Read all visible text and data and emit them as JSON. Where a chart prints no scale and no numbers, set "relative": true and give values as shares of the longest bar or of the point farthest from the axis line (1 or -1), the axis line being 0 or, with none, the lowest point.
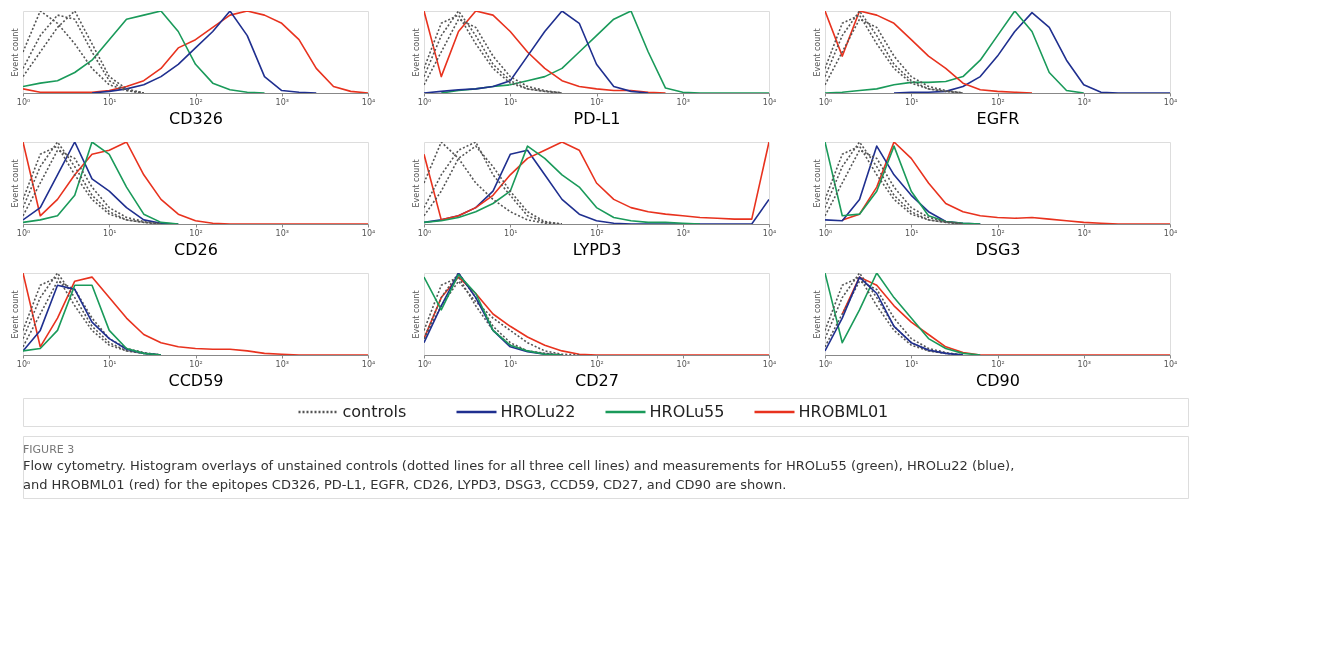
{
  "chart_data": [
    {
      "type": "line",
      "xlabel": "CD326",
      "ylabel": "Event count",
      "relative": true,
      "log": "x",
      "tick_labels": "x",
      "line_style": "solid",
      "xlim": [
        1,
        10000
      ],
      "xticks": [
        {
          "value": 1,
          "label": "10⁰"
        },
        {
          "value": 10,
          "label": "10¹"
        },
        {
          "value": 100,
          "label": "10²"
        },
        {
          "value": 1000,
          "label": "10³"
        },
        {
          "value": 10000,
          "label": "10⁴"
        }
      ],
      "x": [
        1,
        1.585,
        2.512,
        3.981,
        6.31,
        10,
        15.85,
        25.12,
        39.81,
        63.1,
        100,
        158.5,
        251.2,
        398.1,
        631,
        1000,
        1585,
        2512,
        3981,
        6310,
        10000
      ],
      "series": [
        {
          "color": "#555555",
          "line_style": "dotted",
          "values": [
            0.5,
            1,
            0.85,
            0.6,
            0.3,
            0.1,
            0.03,
            0,
            null,
            null,
            null,
            null,
            null,
            null,
            null,
            null,
            null,
            null,
            null,
            null,
            null
          ]
        },
        {
          "color": "#555555",
          "line_style": "dotted",
          "values": [
            0.3,
            0.7,
            0.95,
            0.9,
            0.5,
            0.15,
            0.03,
            0,
            null,
            null,
            null,
            null,
            null,
            null,
            null,
            null,
            null,
            null,
            null,
            null,
            null
          ]
        },
        {
          "color": "#555555",
          "line_style": "dotted",
          "values": [
            0.2,
            0.5,
            0.8,
            1,
            0.6,
            0.2,
            0.05,
            0,
            null,
            null,
            null,
            null,
            null,
            null,
            null,
            null,
            null,
            null,
            null,
            null,
            null
          ]
        },
        {
          "color": "#1f2f8f",
          "values": [
            null,
            null,
            null,
            null,
            0,
            0.02,
            0.05,
            0.1,
            0.2,
            0.35,
            0.55,
            0.75,
            1,
            0.7,
            0.2,
            0.03,
            0.01,
            0,
            null,
            null,
            null
          ]
        },
        {
          "color": "#1a9a5a",
          "values": [
            0.08,
            0.12,
            0.15,
            0.25,
            0.4,
            0.65,
            0.9,
            0.95,
            1,
            0.75,
            0.35,
            0.12,
            0.04,
            0.01,
            0,
            null,
            null,
            null,
            null,
            null,
            null
          ]
        },
        {
          "color": "#e8321e",
          "values": [
            0.05,
            0.01,
            0.01,
            0.01,
            0.01,
            0.03,
            0.08,
            0.15,
            0.3,
            0.55,
            0.65,
            0.8,
            0.95,
            1,
            0.95,
            0.85,
            0.65,
            0.3,
            0.08,
            0.02,
            0
          ]
        }
      ]
    },
    {
      "type": "line",
      "xlabel": "PD-L1",
      "ylabel": "Event count",
      "relative": true,
      "log": "x",
      "tick_labels": "x",
      "line_style": "solid",
      "xlim": [
        1,
        10000
      ],
      "xticks": [
        {
          "value": 1,
          "label": "10⁰"
        },
        {
          "value": 10,
          "label": "10¹"
        },
        {
          "value": 100,
          "label": "10²"
        },
        {
          "value": 1000,
          "label": "10³"
        },
        {
          "value": 10000,
          "label": "10⁴"
        }
      ],
      "x": [
        1,
        1.585,
        2.512,
        3.981,
        6.31,
        10,
        15.85,
        25.12,
        39.81,
        63.1,
        100,
        158.5,
        251.2,
        398.1,
        631,
        1000,
        1585,
        2512,
        3981,
        6310,
        10000
      ],
      "series": [
        {
          "color": "#555555",
          "line_style": "dotted",
          "values": [
            0.3,
            0.85,
            0.95,
            0.6,
            0.3,
            0.12,
            0.05,
            0.02,
            0,
            null,
            null,
            null,
            null,
            null,
            null,
            null,
            null,
            null,
            null,
            null,
            null
          ]
        },
        {
          "color": "#555555",
          "line_style": "dotted",
          "values": [
            0.2,
            0.7,
            1,
            0.7,
            0.35,
            0.15,
            0.05,
            0.02,
            0,
            null,
            null,
            null,
            null,
            null,
            null,
            null,
            null,
            null,
            null,
            null,
            null
          ]
        },
        {
          "color": "#555555",
          "line_style": "dotted",
          "values": [
            0.1,
            0.5,
            0.9,
            0.8,
            0.45,
            0.2,
            0.08,
            0.03,
            0,
            null,
            null,
            null,
            null,
            null,
            null,
            null,
            null,
            null,
            null,
            null,
            null
          ]
        },
        {
          "color": "#1f2f8f",
          "values": [
            0,
            0.02,
            0.04,
            0.05,
            0.08,
            0.15,
            0.45,
            0.75,
            1,
            0.85,
            0.35,
            0.08,
            0.02,
            0,
            null,
            null,
            null,
            null,
            null,
            null,
            null
          ]
        },
        {
          "color": "#1a9a5a",
          "values": [
            null,
            0,
            0.03,
            0.05,
            0.08,
            0.1,
            0.15,
            0.2,
            0.3,
            0.5,
            0.7,
            0.9,
            1,
            0.5,
            0.06,
            0.01,
            0,
            0,
            0,
            0,
            0
          ]
        },
        {
          "color": "#e8321e",
          "values": [
            1,
            0.2,
            0.75,
            1,
            0.95,
            0.75,
            0.5,
            0.3,
            0.15,
            0.08,
            0.05,
            0.03,
            0.03,
            0.01,
            0,
            null,
            null,
            null,
            null,
            null,
            null
          ]
        }
      ]
    },
    {
      "type": "line",
      "xlabel": "EGFR",
      "ylabel": "Event count",
      "relative": true,
      "log": "x",
      "tick_labels": "x",
      "line_style": "solid",
      "xlim": [
        1,
        10000
      ],
      "xticks": [
        {
          "value": 1,
          "label": "10⁰"
        },
        {
          "value": 10,
          "label": "10¹"
        },
        {
          "value": 100,
          "label": "10²"
        },
        {
          "value": 1000,
          "label": "10³"
        },
        {
          "value": 10000,
          "label": "10⁴"
        }
      ],
      "x": [
        1,
        1.585,
        2.512,
        3.981,
        6.31,
        10,
        15.85,
        25.12,
        39.81,
        63.1,
        100,
        158.5,
        251.2,
        398.1,
        631,
        1000,
        1585,
        2512,
        3981,
        6310,
        10000
      ],
      "series": [
        {
          "color": "#555555",
          "line_style": "dotted",
          "values": [
            0.3,
            0.85,
            0.95,
            0.6,
            0.3,
            0.12,
            0.05,
            0.02,
            0,
            null,
            null,
            null,
            null,
            null,
            null,
            null,
            null,
            null,
            null,
            null,
            null
          ]
        },
        {
          "color": "#555555",
          "line_style": "dotted",
          "values": [
            0.2,
            0.7,
            1,
            0.7,
            0.35,
            0.15,
            0.05,
            0.02,
            0,
            null,
            null,
            null,
            null,
            null,
            null,
            null,
            null,
            null,
            null,
            null,
            null
          ]
        },
        {
          "color": "#555555",
          "line_style": "dotted",
          "values": [
            0.1,
            0.5,
            0.9,
            0.8,
            0.45,
            0.2,
            0.08,
            0.03,
            0,
            null,
            null,
            null,
            null,
            null,
            null,
            null,
            null,
            null,
            null,
            null,
            null
          ]
        },
        {
          "color": "#1f2f8f",
          "values": [
            null,
            null,
            null,
            null,
            0,
            0.01,
            0.01,
            0.02,
            0.08,
            0.2,
            0.45,
            0.75,
            0.98,
            0.8,
            0.4,
            0.1,
            0.01,
            0,
            0,
            0,
            0
          ]
        },
        {
          "color": "#1a9a5a",
          "values": [
            0,
            0.01,
            0.03,
            0.05,
            0.1,
            0.13,
            0.13,
            0.14,
            0.2,
            0.4,
            0.7,
            1,
            0.75,
            0.25,
            0.03,
            0,
            null,
            null,
            null,
            null,
            null
          ]
        },
        {
          "color": "#e8321e",
          "values": [
            1,
            0.45,
            1,
            0.95,
            0.85,
            0.65,
            0.45,
            0.3,
            0.12,
            0.04,
            0.02,
            0.01,
            0,
            null,
            null,
            null,
            null,
            null,
            null,
            null,
            null
          ]
        }
      ]
    },
    {
      "type": "line",
      "xlabel": "CD26",
      "ylabel": "Event count",
      "relative": true,
      "log": "x",
      "tick_labels": "x",
      "line_style": "solid",
      "xlim": [
        1,
        10000
      ],
      "xticks": [
        {
          "value": 1,
          "label": "10⁰"
        },
        {
          "value": 10,
          "label": "10¹"
        },
        {
          "value": 100,
          "label": "10²"
        },
        {
          "value": 1000,
          "label": "10³"
        },
        {
          "value": 10000,
          "label": "10⁴"
        }
      ],
      "x": [
        1,
        1.585,
        2.512,
        3.981,
        6.31,
        10,
        15.85,
        25.12,
        39.81,
        63.1,
        100,
        158.5,
        251.2,
        398.1,
        631,
        1000,
        1585,
        2512,
        3981,
        6310,
        10000
      ],
      "series": [
        {
          "color": "#555555",
          "line_style": "dotted",
          "values": [
            0.3,
            0.85,
            0.95,
            0.6,
            0.3,
            0.12,
            0.05,
            0.02,
            0,
            null,
            null,
            null,
            null,
            null,
            null,
            null,
            null,
            null,
            null,
            null,
            null
          ]
        },
        {
          "color": "#555555",
          "line_style": "dotted",
          "values": [
            0.2,
            0.7,
            1,
            0.7,
            0.35,
            0.15,
            0.05,
            0.02,
            0,
            null,
            null,
            null,
            null,
            null,
            null,
            null,
            null,
            null,
            null,
            null,
            null
          ]
        },
        {
          "color": "#555555",
          "line_style": "dotted",
          "values": [
            0.1,
            0.5,
            0.9,
            0.8,
            0.45,
            0.2,
            0.08,
            0.03,
            0,
            null,
            null,
            null,
            null,
            null,
            null,
            null,
            null,
            null,
            null,
            null,
            null
          ]
        },
        {
          "color": "#1f2f8f",
          "values": [
            0.05,
            0.2,
            0.6,
            1,
            0.55,
            0.4,
            0.2,
            0.05,
            0.01,
            0,
            null,
            null,
            null,
            null,
            null,
            null,
            null,
            null,
            null,
            null,
            null
          ]
        },
        {
          "color": "#1a9a5a",
          "values": [
            0.02,
            0.05,
            0.1,
            0.35,
            1,
            0.85,
            0.45,
            0.12,
            0.02,
            0,
            null,
            null,
            null,
            null,
            null,
            null,
            null,
            null,
            null,
            null,
            null
          ]
        },
        {
          "color": "#e8321e",
          "values": [
            1,
            0.1,
            0.3,
            0.6,
            0.85,
            0.9,
            1,
            0.6,
            0.3,
            0.12,
            0.04,
            0.01,
            0,
            0,
            0,
            0,
            0,
            0,
            0,
            0,
            0
          ]
        }
      ]
    },
    {
      "type": "line",
      "xlabel": "LYPD3",
      "ylabel": "Event count",
      "relative": true,
      "log": "x",
      "tick_labels": "x",
      "line_style": "solid",
      "xlim": [
        1,
        10000
      ],
      "xticks": [
        {
          "value": 1,
          "label": "10⁰"
        },
        {
          "value": 10,
          "label": "10¹"
        },
        {
          "value": 100,
          "label": "10²"
        },
        {
          "value": 1000,
          "label": "10³"
        },
        {
          "value": 10000,
          "label": "10⁴"
        }
      ],
      "x": [
        1,
        1.585,
        2.512,
        3.981,
        6.31,
        10,
        15.85,
        25.12,
        39.81,
        63.1,
        100,
        158.5,
        251.2,
        398.1,
        631,
        1000,
        1585,
        2512,
        3981,
        6310,
        10000
      ],
      "series": [
        {
          "color": "#555555",
          "line_style": "dotted",
          "values": [
            0.5,
            1,
            0.8,
            0.5,
            0.3,
            0.15,
            0.05,
            0.01,
            0,
            null,
            null,
            null,
            null,
            null,
            null,
            null,
            null,
            null,
            null,
            null,
            null
          ]
        },
        {
          "color": "#555555",
          "line_style": "dotted",
          "values": [
            0.2,
            0.6,
            0.9,
            1,
            0.6,
            0.35,
            0.1,
            0.02,
            0,
            null,
            null,
            null,
            null,
            null,
            null,
            null,
            null,
            null,
            null,
            null,
            null
          ]
        },
        {
          "color": "#555555",
          "line_style": "dotted",
          "values": [
            0.1,
            0.4,
            0.8,
            0.95,
            0.7,
            0.4,
            0.15,
            0.03,
            0,
            null,
            null,
            null,
            null,
            null,
            null,
            null,
            null,
            null,
            null,
            null,
            null
          ]
        },
        {
          "color": "#1f2f8f",
          "values": [
            0.02,
            0.05,
            0.1,
            0.2,
            0.4,
            0.85,
            0.9,
            0.6,
            0.3,
            0.12,
            0.04,
            0.01,
            0,
            0,
            0,
            0,
            0,
            0,
            0,
            0,
            0.3
          ]
        },
        {
          "color": "#1a9a5a",
          "values": [
            0.02,
            0.04,
            0.08,
            0.15,
            0.25,
            0.4,
            0.95,
            0.8,
            0.6,
            0.45,
            0.2,
            0.08,
            0.04,
            0.02,
            0.02,
            0.01,
            0,
            null,
            null,
            null,
            null
          ]
        },
        {
          "color": "#e8321e",
          "values": [
            0.85,
            0.05,
            0.1,
            0.2,
            0.35,
            0.6,
            0.8,
            0.9,
            1,
            0.9,
            0.5,
            0.3,
            0.2,
            0.15,
            0.12,
            0.1,
            0.08,
            0.07,
            0.06,
            0.06,
            1
          ]
        }
      ]
    },
    {
      "type": "line",
      "xlabel": "DSG3",
      "ylabel": "Event count",
      "relative": true,
      "log": "x",
      "tick_labels": "x",
      "line_style": "solid",
      "xlim": [
        1,
        10000
      ],
      "xticks": [
        {
          "value": 1,
          "label": "10⁰"
        },
        {
          "value": 10,
          "label": "10¹"
        },
        {
          "value": 100,
          "label": "10²"
        },
        {
          "value": 1000,
          "label": "10³"
        },
        {
          "value": 10000,
          "label": "10⁴"
        }
      ],
      "x": [
        1,
        1.585,
        2.512,
        3.981,
        6.31,
        10,
        15.85,
        25.12,
        39.81,
        63.1,
        100,
        158.5,
        251.2,
        398.1,
        631,
        1000,
        1585,
        2512,
        3981,
        6310,
        10000
      ],
      "series": [
        {
          "color": "#555555",
          "line_style": "dotted",
          "values": [
            0.3,
            0.85,
            0.95,
            0.6,
            0.3,
            0.12,
            0.05,
            0.02,
            0,
            null,
            null,
            null,
            null,
            null,
            null,
            null,
            null,
            null,
            null,
            null,
            null
          ]
        },
        {
          "color": "#555555",
          "line_style": "dotted",
          "values": [
            0.2,
            0.7,
            1,
            0.7,
            0.35,
            0.15,
            0.05,
            0.02,
            0,
            null,
            null,
            null,
            null,
            null,
            null,
            null,
            null,
            null,
            null,
            null,
            null
          ]
        },
        {
          "color": "#555555",
          "line_style": "dotted",
          "values": [
            0.1,
            0.5,
            0.9,
            0.8,
            0.45,
            0.2,
            0.08,
            0.03,
            0,
            null,
            null,
            null,
            null,
            null,
            null,
            null,
            null,
            null,
            null,
            null,
            null
          ]
        },
        {
          "color": "#1f2f8f",
          "values": [
            0.05,
            0.04,
            0.3,
            0.95,
            0.6,
            0.35,
            0.15,
            0.03,
            0.01,
            0,
            null,
            null,
            null,
            null,
            null,
            null,
            null,
            null,
            null,
            null,
            null
          ]
        },
        {
          "color": "#1a9a5a",
          "values": [
            1,
            0.1,
            0.12,
            0.4,
            0.95,
            0.4,
            0.1,
            0.03,
            0.01,
            0,
            null,
            null,
            null,
            null,
            null,
            null,
            null,
            null,
            null,
            null,
            null
          ]
        },
        {
          "color": "#e8321e",
          "values": [
            null,
            0.05,
            0.12,
            0.45,
            1,
            0.8,
            0.5,
            0.25,
            0.15,
            0.1,
            0.08,
            0.07,
            0.08,
            0.06,
            0.04,
            0.02,
            0.01,
            0,
            0,
            0,
            0
          ]
        }
      ]
    },
    {
      "type": "line",
      "xlabel": "CCD59",
      "ylabel": "Event count",
      "relative": true,
      "log": "x",
      "tick_labels": "x",
      "line_style": "solid",
      "xlim": [
        1,
        10000
      ],
      "xticks": [
        {
          "value": 1,
          "label": "10⁰"
        },
        {
          "value": 10,
          "label": "10¹"
        },
        {
          "value": 100,
          "label": "10²"
        },
        {
          "value": 1000,
          "label": "10³"
        },
        {
          "value": 10000,
          "label": "10⁴"
        }
      ],
      "x": [
        1,
        1.585,
        2.512,
        3.981,
        6.31,
        10,
        15.85,
        25.12,
        39.81,
        63.1,
        100,
        158.5,
        251.2,
        398.1,
        631,
        1000,
        1585,
        2512,
        3981,
        6310,
        10000
      ],
      "series": [
        {
          "color": "#555555",
          "line_style": "dotted",
          "values": [
            0.3,
            0.85,
            0.95,
            0.6,
            0.3,
            0.12,
            0.05,
            0.02,
            0,
            null,
            null,
            null,
            null,
            null,
            null,
            null,
            null,
            null,
            null,
            null,
            null
          ]
        },
        {
          "color": "#555555",
          "line_style": "dotted",
          "values": [
            0.2,
            0.7,
            1,
            0.7,
            0.35,
            0.15,
            0.05,
            0.02,
            0,
            null,
            null,
            null,
            null,
            null,
            null,
            null,
            null,
            null,
            null,
            null,
            null
          ]
        },
        {
          "color": "#555555",
          "line_style": "dotted",
          "values": [
            0.1,
            0.5,
            0.9,
            0.8,
            0.45,
            0.2,
            0.08,
            0.03,
            0,
            null,
            null,
            null,
            null,
            null,
            null,
            null,
            null,
            null,
            null,
            null,
            null
          ]
        },
        {
          "color": "#1f2f8f",
          "values": [
            0.05,
            0.3,
            0.85,
            0.8,
            0.4,
            0.2,
            0.07,
            0.02,
            0,
            null,
            null,
            null,
            null,
            null,
            null,
            null,
            null,
            null,
            null,
            null,
            null
          ]
        },
        {
          "color": "#1a9a5a",
          "values": [
            0.05,
            0.08,
            0.3,
            0.85,
            0.85,
            0.3,
            0.08,
            0.02,
            0,
            null,
            null,
            null,
            null,
            null,
            null,
            null,
            null,
            null,
            null,
            null,
            null
          ]
        },
        {
          "color": "#e8321e",
          "values": [
            1,
            0.1,
            0.45,
            0.9,
            0.95,
            0.7,
            0.45,
            0.25,
            0.15,
            0.1,
            0.08,
            0.07,
            0.07,
            0.05,
            0.02,
            0.01,
            0,
            0,
            0,
            0,
            0
          ]
        }
      ]
    },
    {
      "type": "line",
      "xlabel": "CD27",
      "ylabel": "Event count",
      "relative": true,
      "log": "x",
      "tick_labels": "x",
      "line_style": "solid",
      "legend": "bottom",
      "xlim": [
        1,
        10000
      ],
      "xticks": [
        {
          "value": 1,
          "label": "10⁰"
        },
        {
          "value": 10,
          "label": "10¹"
        },
        {
          "value": 100,
          "label": "10²"
        },
        {
          "value": 1000,
          "label": "10³"
        },
        {
          "value": 10000,
          "label": "10⁴"
        }
      ],
      "x": [
        1,
        1.585,
        2.512,
        3.981,
        6.31,
        10,
        15.85,
        25.12,
        39.81,
        63.1,
        100,
        158.5,
        251.2,
        398.1,
        631,
        1000,
        1585,
        2512,
        3981,
        6310,
        10000
      ],
      "series": [
        {
          "name": "controls",
          "color": "#555555",
          "line_style": "dotted",
          "values": [
            0.3,
            0.85,
            0.95,
            0.6,
            0.3,
            0.12,
            0.05,
            0.02,
            0,
            null,
            null,
            null,
            null,
            null,
            null,
            null,
            null,
            null,
            null,
            null,
            null
          ]
        },
        {
          "color": "#555555",
          "line_style": "dotted",
          "values": [
            0.2,
            0.7,
            1,
            0.7,
            0.35,
            0.15,
            0.05,
            0.02,
            0,
            null,
            null,
            null,
            null,
            null,
            null,
            null,
            null,
            null,
            null,
            null,
            null
          ]
        },
        {
          "color": "#555555",
          "line_style": "dotted",
          "values": [
            0.2,
            0.6,
            0.9,
            0.65,
            0.45,
            0.3,
            0.15,
            0.05,
            0.01,
            0,
            null,
            null,
            null,
            null,
            null,
            null,
            null,
            null,
            null,
            null,
            null
          ]
        },
        {
          "name": "HROLu22",
          "color": "#1f2f8f",
          "values": [
            0.15,
            0.6,
            1,
            0.7,
            0.3,
            0.1,
            0.04,
            0.01,
            0,
            null,
            null,
            null,
            null,
            null,
            null,
            null,
            null,
            null,
            null,
            null,
            null
          ]
        },
        {
          "name": "HROLu55",
          "color": "#1a9a5a",
          "values": [
            0.95,
            0.55,
            0.98,
            0.75,
            0.3,
            0.12,
            0.05,
            0.01,
            0,
            null,
            null,
            null,
            null,
            null,
            null,
            null,
            null,
            null,
            null,
            null,
            null
          ]
        },
        {
          "name": "HROBML01",
          "color": "#e8321e",
          "values": [
            0.2,
            0.7,
            0.95,
            0.75,
            0.5,
            0.35,
            0.22,
            0.12,
            0.05,
            0.01,
            0,
            0,
            0,
            0,
            0,
            0,
            0,
            0,
            0,
            0,
            0
          ]
        }
      ],
      "annotations": [
        "FIGURE 3",
        "Flow cytometry. Histogram overlays of unstained controls (dotted lines for all three cell lines) and measurements for HROLu55 (green), HROLu22 (blue), and HROBML01 (red) for the epitopes CD326, PD-L1, EGFR, CD26, LYPD3, DSG3, CCD59, CD27, and CD90 are shown."
      ]
    },
    {
      "type": "line",
      "xlabel": "CD90",
      "ylabel": "Event count",
      "relative": true,
      "log": "x",
      "tick_labels": "x",
      "line_style": "solid",
      "xlim": [
        1,
        10000
      ],
      "xticks": [
        {
          "value": 1,
          "label": "10⁰"
        },
        {
          "value": 10,
          "label": "10¹"
        },
        {
          "value": 100,
          "label": "10²"
        },
        {
          "value": 1000,
          "label": "10³"
        },
        {
          "value": 10000,
          "label": "10⁴"
        }
      ],
      "x": [
        1,
        1.585,
        2.512,
        3.981,
        6.31,
        10,
        15.85,
        25.12,
        39.81,
        63.1,
        100,
        158.5,
        251.2,
        398.1,
        631,
        1000,
        1585,
        2512,
        3981,
        6310,
        10000
      ],
      "series": [
        {
          "color": "#555555",
          "line_style": "dotted",
          "values": [
            0.3,
            0.85,
            0.95,
            0.6,
            0.3,
            0.12,
            0.05,
            0.02,
            0,
            null,
            null,
            null,
            null,
            null,
            null,
            null,
            null,
            null,
            null,
            null,
            null
          ]
        },
        {
          "color": "#555555",
          "line_style": "dotted",
          "values": [
            0.2,
            0.7,
            1,
            0.7,
            0.35,
            0.15,
            0.05,
            0.02,
            0,
            null,
            null,
            null,
            null,
            null,
            null,
            null,
            null,
            null,
            null,
            null,
            null
          ]
        },
        {
          "color": "#555555",
          "line_style": "dotted",
          "values": [
            0.1,
            0.5,
            0.9,
            0.8,
            0.45,
            0.2,
            0.08,
            0.03,
            0,
            null,
            null,
            null,
            null,
            null,
            null,
            null,
            null,
            null,
            null,
            null,
            null
          ]
        },
        {
          "color": "#1f2f8f",
          "values": [
            0.05,
            0.45,
            0.95,
            0.75,
            0.35,
            0.15,
            0.06,
            0.02,
            0,
            null,
            null,
            null,
            null,
            null,
            null,
            null,
            null,
            null,
            null,
            null,
            null
          ]
        },
        {
          "color": "#1a9a5a",
          "values": [
            1,
            0.15,
            0.55,
            1,
            0.7,
            0.45,
            0.2,
            0.08,
            0.02,
            0,
            null,
            null,
            null,
            null,
            null,
            null,
            null,
            null,
            null,
            null,
            null
          ]
        },
        {
          "color": "#e8321e",
          "values": [
            null,
            0.5,
            0.95,
            0.85,
            0.6,
            0.4,
            0.25,
            0.1,
            0.03,
            0,
            0,
            0,
            0,
            0,
            0,
            0,
            0,
            0,
            0,
            0,
            0
          ]
        }
      ]
    }
  ]
}
